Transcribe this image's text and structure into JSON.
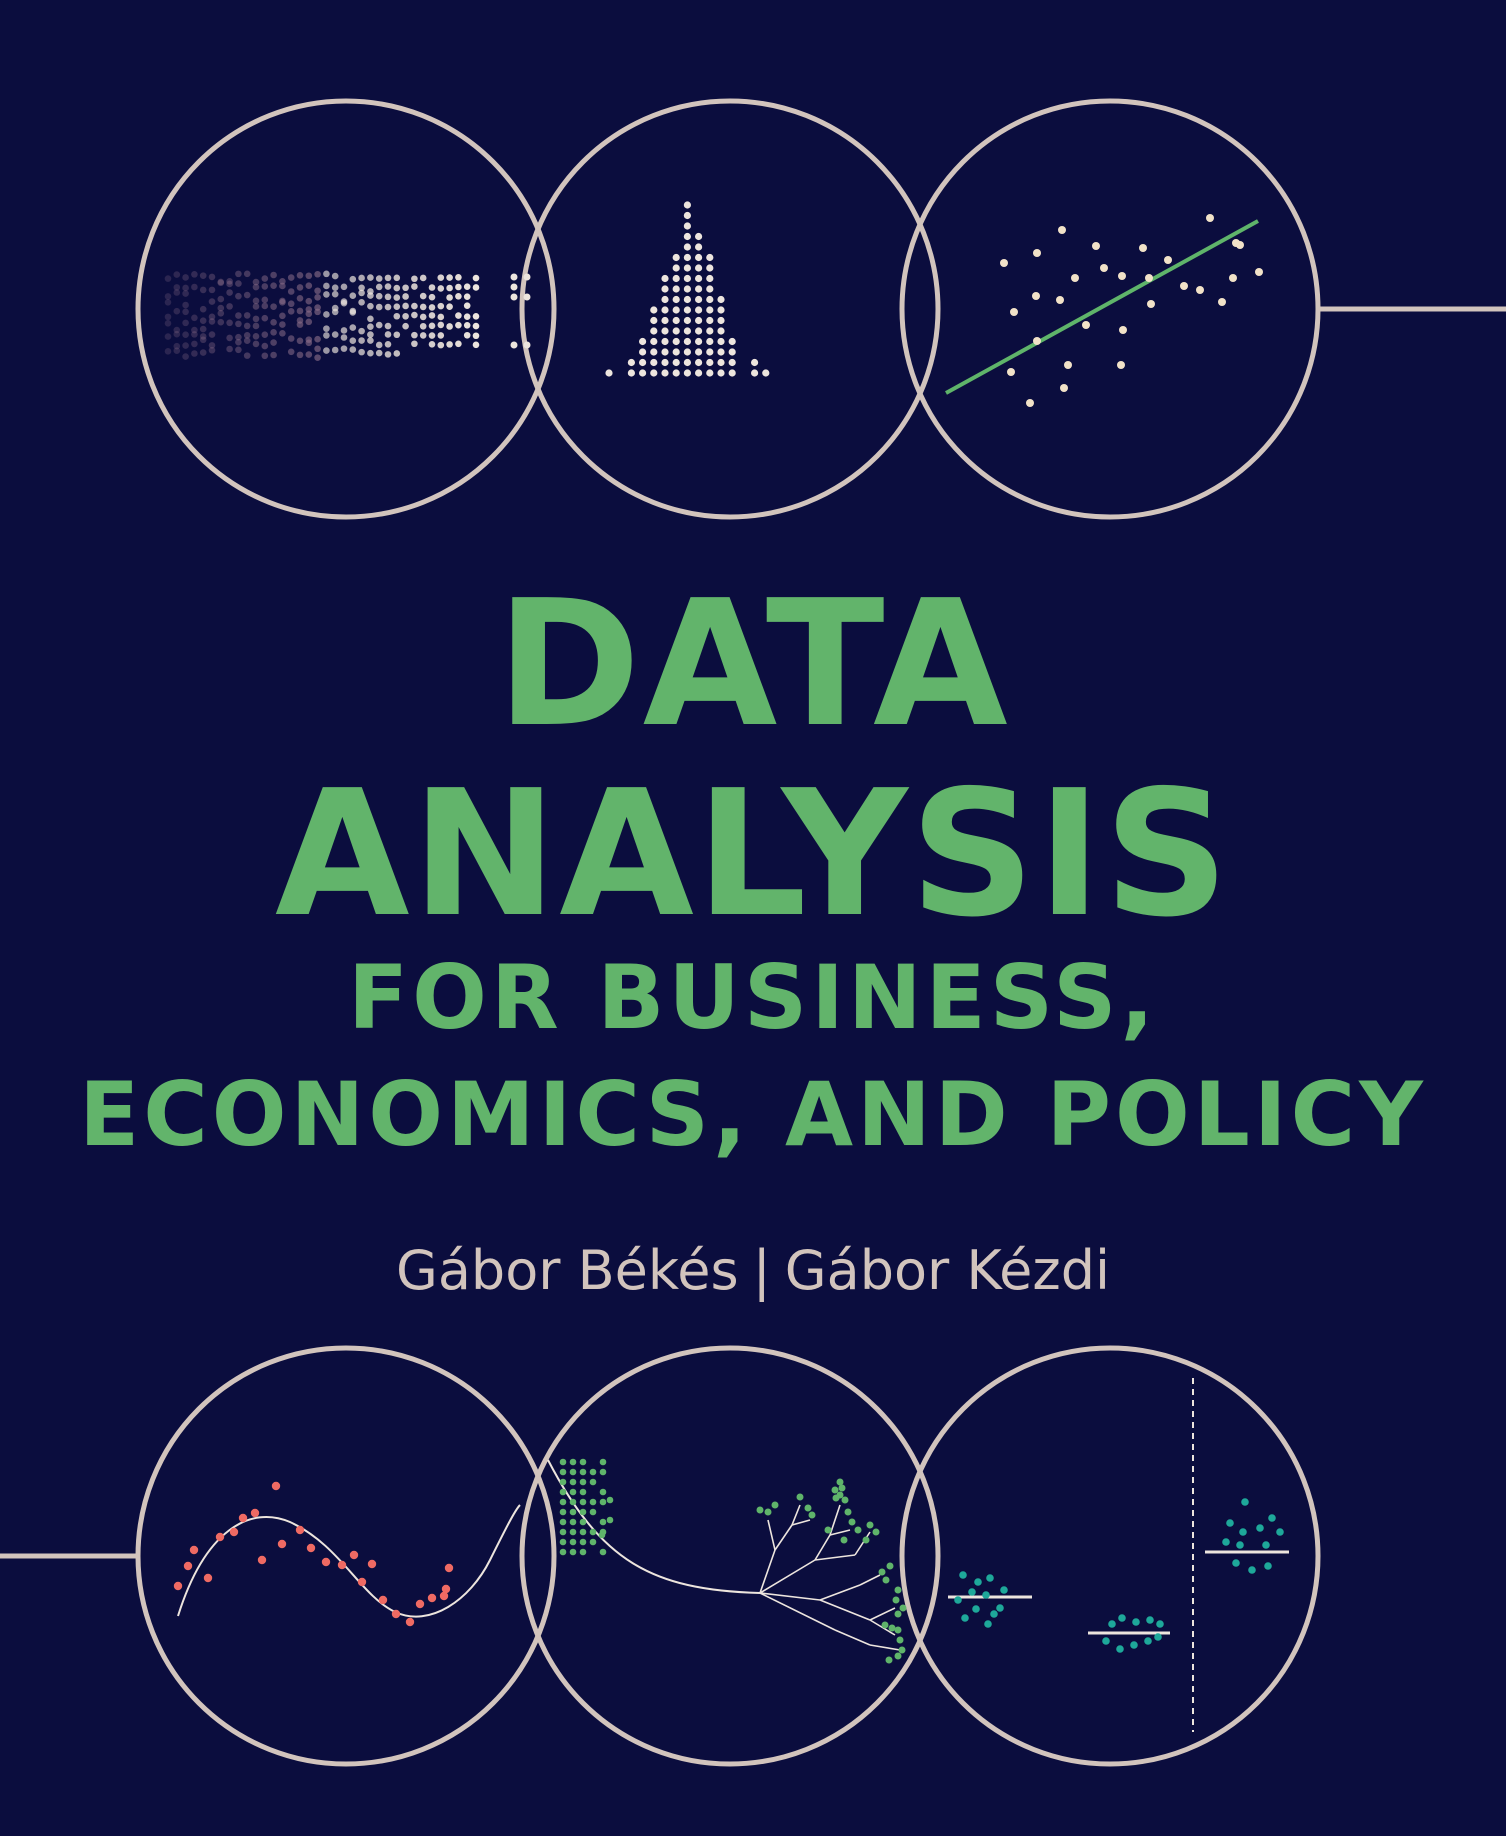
{
  "cover": {
    "title_line1": "DATA",
    "title_line2": "ANALYSIS",
    "subtitle_line1": "FOR BUSINESS,",
    "subtitle_line2": "ECONOMICS, AND POLICY",
    "author1": "Gábor Békés",
    "separator": "|",
    "author2": "Gábor Kézdi"
  },
  "colors": {
    "background": "#0b0d3e",
    "title": "#62b46b",
    "authors": "#d2c4bd",
    "circle_stroke": "#d2c4bd",
    "dots_light": "#ede5de",
    "red_dots": "#ef6a63",
    "green_dots": "#5fb46a",
    "teal_dots": "#1ea89a"
  },
  "icons": [
    "fading-dot-cloud-icon",
    "histogram-icon",
    "scatter-regression-icon",
    "curve-fit-icon",
    "decision-tree-icon",
    "group-means-icon"
  ]
}
